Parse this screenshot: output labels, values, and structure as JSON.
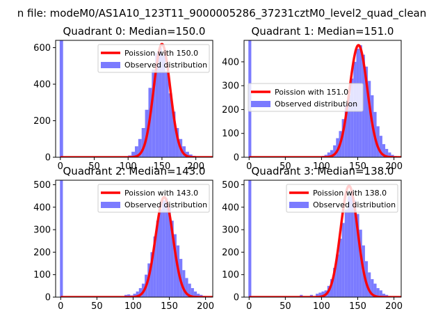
{
  "figure": {
    "suptitle": "n file: modeM0/AS1A10_123T11_9000005286_37231cztM0_level2_quad_clean"
  },
  "chart_data": [
    {
      "type": "bar",
      "title": "Quadrant 0: Median=150.0",
      "xlabel": "",
      "ylabel": "",
      "xlim": [
        -7,
        225
      ],
      "ylim": [
        0,
        640
      ],
      "xticks": [
        0,
        50,
        100,
        150,
        200
      ],
      "yticks": [
        0,
        200,
        400,
        600
      ],
      "grid": false,
      "legend": {
        "placement": "top-right",
        "entries": [
          "Poission with 150.0",
          "Observed distribution"
        ]
      },
      "median": 150.0,
      "bin_width": 5,
      "series": [
        {
          "name": "Observed distribution",
          "kind": "hist",
          "color": "#7b7bff",
          "bins": [
            [
              -1,
              640
            ],
            [
              95,
              5
            ],
            [
              100,
              10
            ],
            [
              105,
              30
            ],
            [
              110,
              60
            ],
            [
              115,
              100
            ],
            [
              120,
              160
            ],
            [
              125,
              260
            ],
            [
              130,
              380
            ],
            [
              135,
              480
            ],
            [
              140,
              570
            ],
            [
              145,
              600
            ],
            [
              150,
              560
            ],
            [
              155,
              470
            ],
            [
              160,
              350
            ],
            [
              165,
              250
            ],
            [
              170,
              160
            ],
            [
              175,
              100
            ],
            [
              180,
              60
            ],
            [
              185,
              30
            ],
            [
              190,
              15
            ],
            [
              195,
              8
            ],
            [
              200,
              4
            ]
          ]
        },
        {
          "name": "Poission with 150.0",
          "kind": "poisson",
          "lambda": 150.0,
          "peak": 620,
          "color": "#ff0000"
        }
      ]
    },
    {
      "type": "bar",
      "title": "Quadrant 1: Median=151.0",
      "xlabel": "",
      "ylabel": "",
      "xlim": [
        -7,
        210
      ],
      "ylim": [
        0,
        490
      ],
      "xticks": [
        0,
        50,
        100,
        150,
        200
      ],
      "yticks": [
        0,
        100,
        200,
        300,
        400
      ],
      "grid": false,
      "legend": {
        "placement": "center-right",
        "entries": [
          "Poission with 151.0",
          "Observed distribution"
        ]
      },
      "median": 151.0,
      "bin_width": 4,
      "series": [
        {
          "name": "Observed distribution",
          "kind": "hist",
          "color": "#7b7bff",
          "bins": [
            [
              -1,
              490
            ],
            [
              100,
              6
            ],
            [
              104,
              10
            ],
            [
              108,
              20
            ],
            [
              112,
              30
            ],
            [
              116,
              50
            ],
            [
              120,
              80
            ],
            [
              124,
              110
            ],
            [
              128,
              160
            ],
            [
              132,
              220
            ],
            [
              136,
              260
            ],
            [
              140,
              330
            ],
            [
              144,
              400
            ],
            [
              148,
              455
            ],
            [
              152,
              470
            ],
            [
              156,
              430
            ],
            [
              160,
              380
            ],
            [
              164,
              320
            ],
            [
              168,
              260
            ],
            [
              172,
              190
            ],
            [
              176,
              130
            ],
            [
              180,
              90
            ],
            [
              184,
              55
            ],
            [
              188,
              35
            ],
            [
              192,
              20
            ],
            [
              196,
              10
            ],
            [
              200,
              5
            ]
          ]
        },
        {
          "name": "Poission with 151.0",
          "kind": "poisson",
          "lambda": 151.0,
          "peak": 470,
          "color": "#ff0000"
        }
      ]
    },
    {
      "type": "bar",
      "title": "Quadrant 2: Median=143.0",
      "xlabel": "",
      "ylabel": "",
      "xlim": [
        -7,
        210
      ],
      "ylim": [
        0,
        520
      ],
      "xticks": [
        0,
        50,
        100,
        150,
        200
      ],
      "yticks": [
        0,
        100,
        200,
        300,
        400,
        500
      ],
      "grid": false,
      "legend": {
        "placement": "top-right",
        "entries": [
          "Poission with 143.0",
          "Observed distribution"
        ]
      },
      "median": 143.0,
      "bin_width": 4,
      "series": [
        {
          "name": "Observed distribution",
          "kind": "hist",
          "color": "#7b7bff",
          "bins": [
            [
              -1,
              520
            ],
            [
              88,
              10
            ],
            [
              92,
              12
            ],
            [
              96,
              8
            ],
            [
              100,
              15
            ],
            [
              104,
              25
            ],
            [
              108,
              40
            ],
            [
              112,
              60
            ],
            [
              116,
              100
            ],
            [
              120,
              150
            ],
            [
              124,
              200
            ],
            [
              128,
              270
            ],
            [
              132,
              340
            ],
            [
              136,
              390
            ],
            [
              140,
              430
            ],
            [
              144,
              440
            ],
            [
              148,
              400
            ],
            [
              152,
              340
            ],
            [
              156,
              280
            ],
            [
              160,
              230
            ],
            [
              164,
              170
            ],
            [
              168,
              120
            ],
            [
              172,
              85
            ],
            [
              176,
              60
            ],
            [
              180,
              40
            ],
            [
              184,
              25
            ],
            [
              188,
              15
            ],
            [
              192,
              10
            ],
            [
              196,
              5
            ]
          ]
        },
        {
          "name": "Poission with 143.0",
          "kind": "poisson",
          "lambda": 143.0,
          "peak": 445,
          "color": "#ff0000"
        }
      ]
    },
    {
      "type": "bar",
      "title": "Quadrant 3: Median=138.0",
      "xlabel": "",
      "ylabel": "",
      "xlim": [
        -7,
        210
      ],
      "ylim": [
        0,
        520
      ],
      "xticks": [
        0,
        50,
        100,
        150,
        200
      ],
      "yticks": [
        0,
        100,
        200,
        300,
        400,
        500
      ],
      "grid": false,
      "legend": {
        "placement": "top-right",
        "entries": [
          "Poission with 138.0",
          "Observed distribution"
        ]
      },
      "median": 138.0,
      "bin_width": 4,
      "series": [
        {
          "name": "Observed distribution",
          "kind": "hist",
          "color": "#7b7bff",
          "bins": [
            [
              -1,
              520
            ],
            [
              70,
              10
            ],
            [
              84,
              10
            ],
            [
              92,
              15
            ],
            [
              96,
              20
            ],
            [
              100,
              25
            ],
            [
              104,
              30
            ],
            [
              108,
              50
            ],
            [
              112,
              80
            ],
            [
              116,
              130
            ],
            [
              120,
              190
            ],
            [
              124,
              260
            ],
            [
              128,
              330
            ],
            [
              132,
              390
            ],
            [
              136,
              450
            ],
            [
              140,
              470
            ],
            [
              144,
              430
            ],
            [
              148,
              370
            ],
            [
              152,
              300
            ],
            [
              156,
              230
            ],
            [
              160,
              160
            ],
            [
              164,
              110
            ],
            [
              168,
              80
            ],
            [
              172,
              60
            ],
            [
              176,
              40
            ],
            [
              180,
              30
            ],
            [
              184,
              15
            ],
            [
              188,
              10
            ],
            [
              192,
              5
            ]
          ]
        },
        {
          "name": "Poission with 138.0",
          "kind": "poisson",
          "lambda": 138.0,
          "peak": 495,
          "color": "#ff0000"
        }
      ]
    }
  ]
}
